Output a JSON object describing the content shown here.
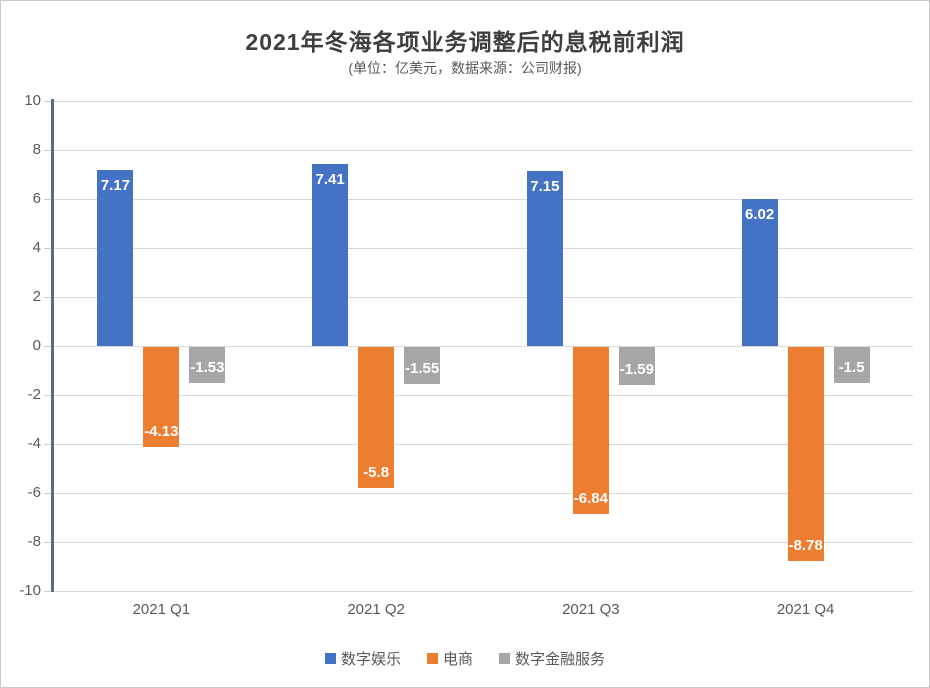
{
  "header": {
    "title": "2021年冬海各项业务调整后的息税前利润",
    "subtitle": "(单位：亿美元，数据来源：公司财报)"
  },
  "chart_data": {
    "type": "bar",
    "title": "2021年冬海各项业务调整后的息税前利润",
    "subtitle": "(单位：亿美元，数据来源：公司财报)",
    "xlabel": "",
    "ylabel": "",
    "categories": [
      "2021 Q1",
      "2021 Q2",
      "2021 Q3",
      "2021 Q4"
    ],
    "series": [
      {
        "key": "digital-entertainment",
        "name": "数字娱乐",
        "color": "#4472C4",
        "values": [
          7.17,
          7.41,
          7.15,
          6.02
        ],
        "labels": [
          "7.17",
          "7.41",
          "7.15",
          "6.02"
        ]
      },
      {
        "key": "ecommerce",
        "name": "电商",
        "color": "#ED7D31",
        "values": [
          -4.13,
          -5.8,
          -6.84,
          -8.78
        ],
        "labels": [
          "-4.13",
          "-5.8",
          "-6.84",
          "-8.78"
        ]
      },
      {
        "key": "digital-financial-services",
        "name": "数字金融服务",
        "color": "#A6A6A6",
        "values": [
          -1.53,
          -1.55,
          -1.59,
          -1.5
        ],
        "labels": [
          "-1.53",
          "-1.55",
          "-1.59",
          "-1.5"
        ]
      }
    ],
    "ylim": [
      -10,
      10
    ],
    "yticks": [
      10,
      8,
      6,
      4,
      2,
      0,
      -2,
      -4,
      -6,
      -8,
      -10
    ],
    "grid": true,
    "data_labels": true,
    "legend_position": "bottom"
  },
  "colors": {
    "axis_line": "#50707f",
    "gridline": "#d9d9d9",
    "tick_text": "#595959",
    "title_text": "#3f3f3f"
  }
}
